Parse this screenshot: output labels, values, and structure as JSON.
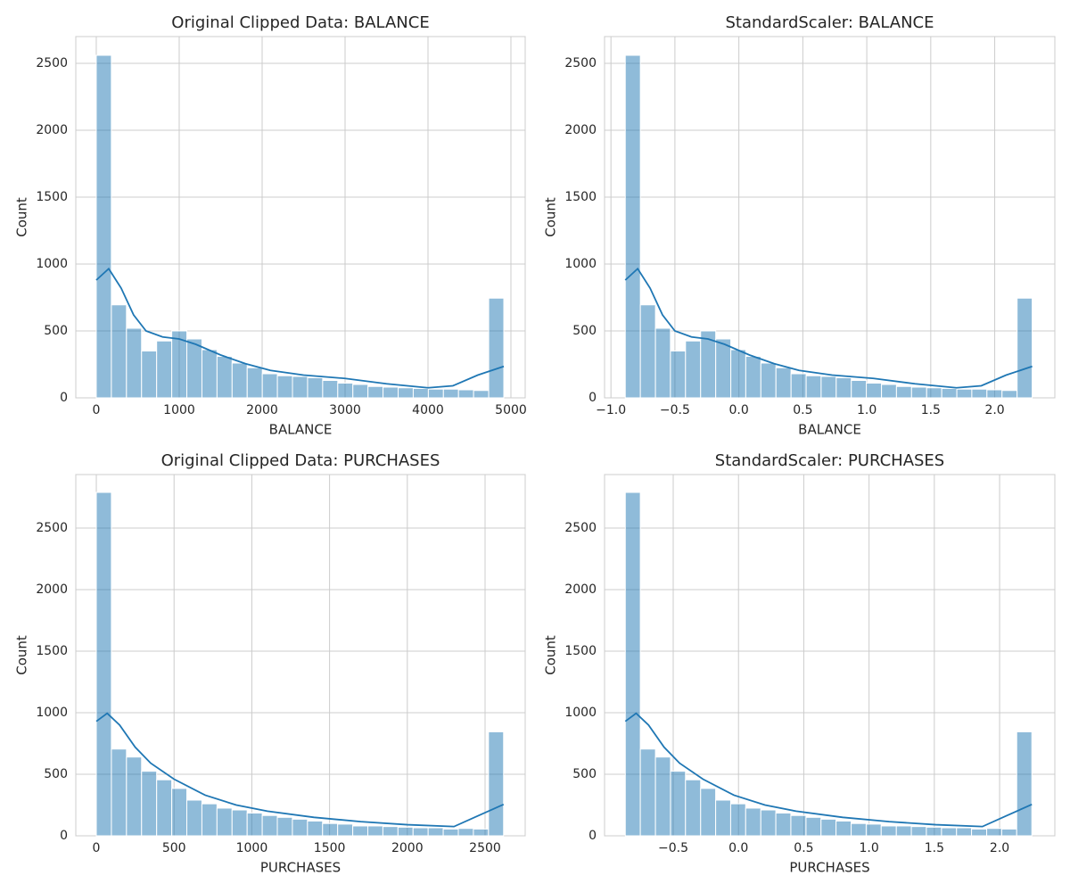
{
  "chart_data": [
    {
      "type": "histogram",
      "title": "Original Clipped Data: BALANCE",
      "x_label": "BALANCE",
      "y_label": "Count",
      "color": "#1f77b4",
      "grid": true,
      "bins": [
        0,
        182,
        364,
        546,
        728,
        910,
        1092,
        1274,
        1456,
        1638,
        1820,
        2002,
        2184,
        2366,
        2548,
        2730,
        2912,
        3094,
        3276,
        3458,
        3640,
        3822,
        4004,
        4186,
        4368,
        4550,
        4732,
        4914
      ],
      "counts": [
        2560,
        695,
        520,
        350,
        425,
        500,
        440,
        360,
        310,
        260,
        225,
        180,
        165,
        160,
        150,
        130,
        110,
        100,
        85,
        80,
        75,
        70,
        65,
        65,
        60,
        55,
        745
      ],
      "kde_x": [
        0,
        150,
        300,
        450,
        600,
        800,
        1000,
        1200,
        1500,
        1800,
        2100,
        2500,
        3000,
        3500,
        4000,
        4300,
        4600,
        4914
      ],
      "kde_values": [
        880,
        965,
        820,
        620,
        500,
        455,
        440,
        400,
        320,
        255,
        205,
        170,
        145,
        105,
        75,
        90,
        170,
        235
      ],
      "xlim": [
        -247,
        5172
      ],
      "ylim": [
        0,
        2700
      ],
      "xticks": [
        0,
        1000,
        2000,
        3000,
        4000,
        5000
      ],
      "yticks": [
        0,
        500,
        1000,
        1500,
        2000,
        2500
      ]
    },
    {
      "type": "histogram",
      "title": "StandardScaler: BALANCE",
      "x_label": "BALANCE",
      "y_label": "Count",
      "color": "#1f77b4",
      "grid": true,
      "bins": [
        -0.888,
        -0.77,
        -0.652,
        -0.535,
        -0.417,
        -0.299,
        -0.181,
        -0.063,
        0.054,
        0.172,
        0.29,
        0.408,
        0.526,
        0.643,
        0.761,
        0.879,
        0.997,
        1.115,
        1.232,
        1.35,
        1.468,
        1.586,
        1.704,
        1.821,
        1.939,
        2.057,
        2.175,
        2.293
      ],
      "counts": [
        2560,
        695,
        520,
        350,
        425,
        500,
        440,
        360,
        310,
        260,
        225,
        180,
        165,
        160,
        150,
        130,
        110,
        100,
        85,
        80,
        75,
        70,
        65,
        65,
        60,
        55,
        745
      ],
      "kde_x": [
        -0.888,
        -0.791,
        -0.694,
        -0.597,
        -0.5,
        -0.37,
        -0.241,
        -0.111,
        0.083,
        0.277,
        0.471,
        0.73,
        1.054,
        1.377,
        1.701,
        1.895,
        2.089,
        2.293
      ],
      "kde_values": [
        880,
        965,
        820,
        620,
        500,
        455,
        440,
        400,
        320,
        255,
        205,
        170,
        145,
        105,
        75,
        90,
        170,
        235
      ],
      "xlim": [
        -1.05,
        2.47
      ],
      "ylim": [
        0,
        2700
      ],
      "xticks": [
        {
          "value": -1.0,
          "label": "−1.0"
        },
        {
          "value": -0.5,
          "label": "−0.5"
        },
        {
          "value": 0,
          "label": "0.0"
        },
        0.5,
        {
          "value": 1,
          "label": "1.0"
        },
        1.5,
        {
          "value": 2,
          "label": "2.0"
        }
      ],
      "yticks": [
        0,
        500,
        1000,
        1500,
        2000,
        2500
      ]
    },
    {
      "type": "histogram",
      "title": "Original Clipped Data: PURCHASES",
      "x_label": "PURCHASES",
      "y_label": "Count",
      "color": "#1f77b4",
      "grid": true,
      "bins": [
        0,
        97,
        194,
        291,
        388,
        485,
        582,
        679,
        776,
        873,
        970,
        1067,
        1164,
        1261,
        1358,
        1455,
        1552,
        1649,
        1746,
        1843,
        1940,
        2037,
        2134,
        2231,
        2328,
        2425,
        2522,
        2619
      ],
      "counts": [
        2790,
        705,
        640,
        525,
        455,
        385,
        290,
        260,
        225,
        210,
        185,
        165,
        150,
        135,
        120,
        100,
        95,
        80,
        80,
        75,
        70,
        65,
        65,
        55,
        60,
        55,
        845
      ],
      "kde_x": [
        0,
        70,
        150,
        250,
        350,
        500,
        700,
        900,
        1100,
        1400,
        1700,
        2000,
        2300,
        2450,
        2619
      ],
      "kde_values": [
        930,
        995,
        900,
        720,
        590,
        460,
        330,
        250,
        200,
        150,
        115,
        90,
        75,
        160,
        255
      ],
      "xlim": [
        -132,
        2758
      ],
      "ylim": [
        0,
        2935
      ],
      "xticks": [
        0,
        500,
        1000,
        1500,
        2000,
        2500
      ],
      "yticks": [
        0,
        500,
        1000,
        1500,
        2000,
        2500
      ]
    },
    {
      "type": "histogram",
      "title": "StandardScaler: PURCHASES",
      "x_label": "PURCHASES",
      "y_label": "Count",
      "color": "#1f77b4",
      "grid": true,
      "bins": [
        -0.867,
        -0.752,
        -0.636,
        -0.521,
        -0.406,
        -0.29,
        -0.175,
        -0.06,
        0.055,
        0.171,
        0.286,
        0.401,
        0.517,
        0.632,
        0.747,
        0.863,
        0.978,
        1.093,
        1.209,
        1.324,
        1.439,
        1.555,
        1.67,
        1.785,
        1.901,
        2.016,
        2.131,
        2.247
      ],
      "counts": [
        2790,
        705,
        640,
        525,
        455,
        385,
        290,
        260,
        225,
        210,
        185,
        165,
        150,
        135,
        120,
        100,
        95,
        80,
        80,
        75,
        70,
        65,
        65,
        55,
        60,
        55,
        845
      ],
      "kde_x": [
        -0.867,
        -0.784,
        -0.689,
        -0.57,
        -0.451,
        -0.272,
        -0.035,
        0.203,
        0.441,
        0.798,
        1.154,
        1.511,
        1.868,
        2.046,
        2.247
      ],
      "kde_values": [
        930,
        995,
        900,
        720,
        590,
        460,
        330,
        250,
        200,
        150,
        115,
        90,
        75,
        160,
        255
      ],
      "xlim": [
        -1.026,
        2.423
      ],
      "ylim": [
        0,
        2935
      ],
      "xticks": [
        {
          "value": -0.5,
          "label": "−0.5"
        },
        {
          "value": 0,
          "label": "0.0"
        },
        0.5,
        {
          "value": 1,
          "label": "1.0"
        },
        1.5,
        {
          "value": 2,
          "label": "2.0"
        }
      ],
      "yticks": [
        0,
        500,
        1000,
        1500,
        2000,
        2500
      ]
    }
  ]
}
